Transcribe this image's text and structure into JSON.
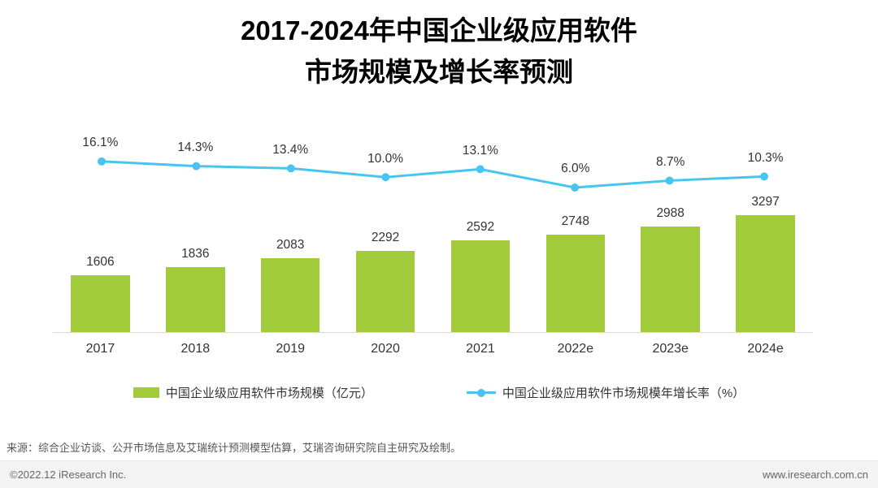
{
  "title": {
    "line1": "2017-2024年中国企业级应用软件",
    "line2": "市场规模及增长率预测"
  },
  "chart_data": {
    "type": "bar",
    "title": "2017-2024年中国企业级应用软件市场规模及增长率预测",
    "categories": [
      "2017",
      "2018",
      "2019",
      "2020",
      "2021",
      "2022e",
      "2023e",
      "2024e"
    ],
    "series": [
      {
        "name": "中国企业级应用软件市场规模（亿元）",
        "type": "bar",
        "values": [
          1606,
          1836,
          2083,
          2292,
          2592,
          2748,
          2988,
          3297
        ],
        "color": "#a2cc3b"
      },
      {
        "name": "中国企业级应用软件市场规模年增长率（%）",
        "type": "line",
        "values": [
          16.1,
          14.3,
          13.4,
          10.0,
          13.1,
          6.0,
          8.7,
          10.3
        ],
        "labels": [
          "16.1%",
          "14.3%",
          "13.4%",
          "10.0%",
          "13.1%",
          "6.0%",
          "8.7%",
          "10.3%"
        ],
        "color": "#47c4ef"
      }
    ],
    "xlabel": "",
    "ylabel": "",
    "grid": false,
    "legend_position": "bottom"
  },
  "legend": {
    "bar_label": "中国企业级应用软件市场规模（亿元）",
    "line_label": "中国企业级应用软件市场规模年增长率（%）"
  },
  "footer": {
    "source": "来源：综合企业访谈、公开市场信息及艾瑞统计预测模型估算，艾瑞咨询研究院自主研究及绘制。",
    "copyright": "©2022.12 iResearch Inc.",
    "website": "www.iresearch.com.cn"
  }
}
